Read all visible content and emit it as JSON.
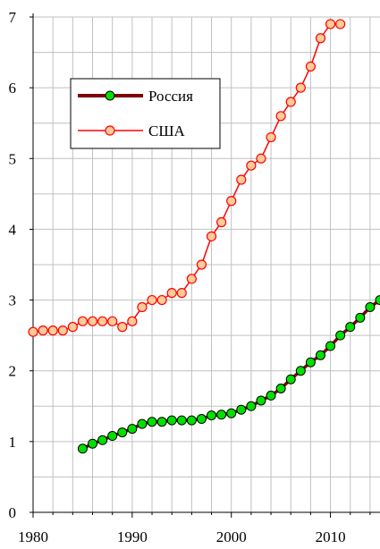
{
  "chart_data": {
    "type": "line",
    "xlim": [
      1980,
      2015
    ],
    "ylim": [
      0,
      7
    ],
    "x_ticks": [
      1980,
      1990,
      2000,
      2010
    ],
    "x_tick_labels": [
      "1980",
      "1990",
      "2000",
      "2010"
    ],
    "y_ticks": [
      0,
      1,
      2,
      3,
      4,
      5,
      6,
      7
    ],
    "y_tick_labels": [
      "0",
      "1",
      "2",
      "3",
      "4",
      "5",
      "6",
      "7"
    ],
    "grid": true,
    "legend_position": "upper-left",
    "series": [
      {
        "name": "Россия",
        "line_color": "#800000",
        "marker_color": "#00e000",
        "x": [
          1985,
          1986,
          1987,
          1988,
          1989,
          1990,
          1991,
          1992,
          1993,
          1994,
          1995,
          1996,
          1997,
          1998,
          1999,
          2000,
          2001,
          2002,
          2003,
          2004,
          2005,
          2006,
          2007,
          2008,
          2009,
          2010,
          2011,
          2012,
          2013,
          2014,
          2015
        ],
        "y": [
          0.9,
          0.97,
          1.02,
          1.08,
          1.13,
          1.18,
          1.25,
          1.28,
          1.28,
          1.3,
          1.3,
          1.3,
          1.32,
          1.37,
          1.38,
          1.4,
          1.45,
          1.5,
          1.58,
          1.65,
          1.75,
          1.88,
          2.0,
          2.12,
          2.22,
          2.35,
          2.5,
          2.62,
          2.75,
          2.9,
          3.0
        ]
      },
      {
        "name": "США",
        "line_color": "#ff0000",
        "marker_color": "#ffcc99",
        "x": [
          1980,
          1981,
          1982,
          1983,
          1984,
          1985,
          1986,
          1987,
          1988,
          1989,
          1990,
          1991,
          1992,
          1993,
          1994,
          1995,
          1996,
          1997,
          1998,
          1999,
          2000,
          2001,
          2002,
          2003,
          2004,
          2005,
          2006,
          2007,
          2008,
          2009,
          2010,
          2011
        ],
        "y": [
          2.55,
          2.57,
          2.57,
          2.57,
          2.62,
          2.7,
          2.7,
          2.7,
          2.7,
          2.62,
          2.7,
          2.9,
          3.0,
          3.0,
          3.1,
          3.1,
          3.3,
          3.5,
          3.9,
          4.1,
          4.4,
          4.7,
          4.9,
          5.0,
          5.3,
          5.6,
          5.8,
          6.0,
          6.3,
          6.7,
          6.9,
          6.9
        ]
      }
    ]
  }
}
